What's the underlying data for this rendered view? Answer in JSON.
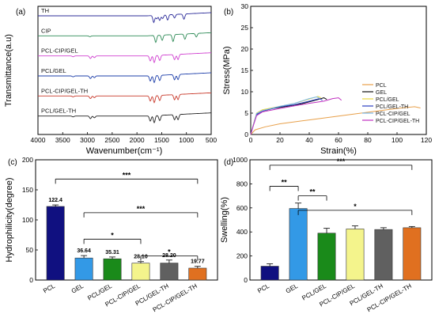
{
  "chart_data": [
    {
      "panel": "(a)",
      "type": "line",
      "xlabel": "Wavenumber(cm⁻¹)",
      "ylabel": "Transmittance(a.u)",
      "xlim": [
        4000,
        500
      ],
      "xticks": [
        4000,
        3500,
        3000,
        2500,
        2000,
        1500,
        1000,
        500
      ],
      "y_ticks": "none",
      "series": [
        {
          "name": "TH",
          "color": "#2c2c9a",
          "baseline": 6,
          "features": [
            [
              1720,
              0
            ],
            [
              1660,
              -4
            ],
            [
              1600,
              -2
            ],
            [
              1540,
              -3
            ],
            [
              1480,
              -2
            ],
            [
              1380,
              -3
            ],
            [
              1240,
              -2
            ],
            [
              1050,
              -3
            ]
          ]
        },
        {
          "name": "CIP",
          "color": "#2e8b57",
          "baseline": 5,
          "features": [
            [
              2950,
              -0.5
            ],
            [
              1620,
              -4
            ],
            [
              1490,
              -3
            ],
            [
              1270,
              -4
            ],
            [
              1030,
              -3
            ],
            [
              800,
              -2
            ]
          ]
        },
        {
          "name": "PCL-CIP/GEL",
          "color": "#d040d0",
          "baseline": 4,
          "features": [
            [
              3290,
              -0.5
            ],
            [
              2940,
              -1.5
            ],
            [
              2860,
              -1
            ],
            [
              1730,
              -3
            ],
            [
              1650,
              -4
            ],
            [
              1540,
              -3
            ],
            [
              1240,
              -3
            ],
            [
              1170,
              -3
            ]
          ]
        },
        {
          "name": "PCL/GEL",
          "color": "#1e3faa",
          "baseline": 3,
          "features": [
            [
              3290,
              -0.5
            ],
            [
              2940,
              -1.5
            ],
            [
              2860,
              -1
            ],
            [
              1730,
              -3
            ],
            [
              1650,
              -4
            ],
            [
              1540,
              -3
            ],
            [
              1240,
              -3
            ],
            [
              1170,
              -3
            ]
          ]
        },
        {
          "name": "PCL-CIP/GEL-TH",
          "color": "#c8382a",
          "baseline": 2,
          "features": [
            [
              3290,
              -0.5
            ],
            [
              2940,
              -1.5
            ],
            [
              2860,
              -1
            ],
            [
              1730,
              -3
            ],
            [
              1650,
              -4
            ],
            [
              1540,
              -3
            ],
            [
              1240,
              -3
            ],
            [
              1170,
              -3
            ]
          ]
        },
        {
          "name": "PCL/GEL-TH",
          "color": "#222222",
          "baseline": 1,
          "features": [
            [
              3290,
              -0.5
            ],
            [
              2940,
              -1.5
            ],
            [
              2860,
              -1
            ],
            [
              1730,
              -3
            ],
            [
              1650,
              -4
            ],
            [
              1540,
              -3
            ],
            [
              1240,
              -3
            ],
            [
              1170,
              -3
            ]
          ]
        }
      ]
    },
    {
      "panel": "(b)",
      "type": "line",
      "xlabel": "Strain(%)",
      "ylabel": "Stress(MPa)",
      "xlim": [
        0,
        120
      ],
      "ylim": [
        0,
        30
      ],
      "xticks": [
        0,
        20,
        40,
        60,
        80,
        100,
        120
      ],
      "yticks": [
        0,
        5,
        10,
        15,
        20,
        25,
        30
      ],
      "legend_position": "bottom-right",
      "series": [
        {
          "name": "PCL",
          "color": "#e8a04a",
          "points": [
            [
              0,
              0
            ],
            [
              3,
              1.1
            ],
            [
              10,
              1.8
            ],
            [
              20,
              2.5
            ],
            [
              40,
              3.4
            ],
            [
              60,
              4.3
            ],
            [
              80,
              5.2
            ],
            [
              100,
              6.1
            ],
            [
              112,
              6.5
            ],
            [
              116,
              6.2
            ]
          ]
        },
        {
          "name": "GEL",
          "color": "#111111",
          "points": [
            [
              0,
              0
            ],
            [
              2,
              2.5
            ],
            [
              4,
              4.8
            ],
            [
              6,
              5.3
            ],
            [
              15,
              6.1
            ],
            [
              25,
              6.6
            ],
            [
              35,
              7.2
            ],
            [
              45,
              8.1
            ],
            [
              50,
              8.6
            ],
            [
              52,
              8.2
            ]
          ]
        },
        {
          "name": "PCL/GEL",
          "color": "#e8d840",
          "points": [
            [
              0,
              0
            ],
            [
              2,
              2.6
            ],
            [
              4,
              5.0
            ],
            [
              8,
              5.8
            ],
            [
              20,
              6.6
            ],
            [
              30,
              7.3
            ],
            [
              40,
              8.3
            ],
            [
              46,
              8.9
            ],
            [
              48,
              8.6
            ]
          ]
        },
        {
          "name": "PCL/GEL-TH",
          "color": "#2a40c0",
          "points": [
            [
              0,
              0
            ],
            [
              2,
              2.4
            ],
            [
              4,
              4.6
            ],
            [
              8,
              5.5
            ],
            [
              20,
              6.5
            ],
            [
              30,
              7.0
            ],
            [
              40,
              7.8
            ],
            [
              47,
              8.4
            ],
            [
              49,
              8.0
            ]
          ]
        },
        {
          "name": "PCL-CIP/GEL",
          "color": "#7ab8e8",
          "points": [
            [
              0,
              0
            ],
            [
              2,
              2.5
            ],
            [
              4,
              4.9
            ],
            [
              8,
              5.6
            ],
            [
              20,
              6.6
            ],
            [
              30,
              7.3
            ],
            [
              40,
              8.4
            ],
            [
              45,
              8.8
            ],
            [
              47,
              8.5
            ]
          ]
        },
        {
          "name": "PCL-CIP/GEL-TH",
          "color": "#c030c0",
          "points": [
            [
              0,
              0
            ],
            [
              2,
              2.3
            ],
            [
              4,
              4.4
            ],
            [
              8,
              5.3
            ],
            [
              20,
              6.1
            ],
            [
              30,
              6.7
            ],
            [
              40,
              7.3
            ],
            [
              50,
              7.8
            ],
            [
              56,
              8.4
            ],
            [
              60,
              8.6
            ],
            [
              62,
              8.0
            ]
          ]
        }
      ]
    },
    {
      "panel": "(c)",
      "type": "bar",
      "ylabel": "Hydrophilicity(degree)",
      "ylim": [
        0,
        200
      ],
      "yticks": [
        0,
        50,
        100,
        150,
        200
      ],
      "categories": [
        "PCL",
        "GEL",
        "PCL/GEL",
        "PCL-CIP/GEL",
        "PCL/GEL-TH",
        "PCL-CIP/GEL-TH"
      ],
      "values": [
        122.4,
        36.64,
        35.31,
        28.1,
        28.2,
        19.77
      ],
      "value_labels": [
        "122.4",
        "36.64",
        "35.31",
        "28.10",
        "28.20",
        "19.77"
      ],
      "errors": [
        2.5,
        4,
        3,
        2.5,
        5,
        3
      ],
      "colors": [
        "#101080",
        "#3399e6",
        "#1a8a1a",
        "#f4f48c",
        "#606060",
        "#e07020"
      ],
      "significance": [
        "***",
        "***",
        "*",
        "*"
      ]
    },
    {
      "panel": "(d)",
      "type": "bar",
      "ylabel": "Swelling(%)",
      "ylim": [
        0,
        1000
      ],
      "yticks": [
        0,
        200,
        400,
        600,
        800,
        1000
      ],
      "categories": [
        "PCL",
        "GEL",
        "PCL/GEL",
        "PCL-CIP/GEL",
        "PCL/GEL-TH",
        "PCL-CIP/GEL-TH"
      ],
      "values": [
        115,
        595,
        390,
        425,
        420,
        435
      ],
      "errors": [
        20,
        45,
        40,
        25,
        15,
        10
      ],
      "colors": [
        "#101080",
        "#3399e6",
        "#1a8a1a",
        "#f4f48c",
        "#606060",
        "#e07020"
      ],
      "significance": [
        "***",
        "**",
        "**",
        "*"
      ]
    }
  ]
}
